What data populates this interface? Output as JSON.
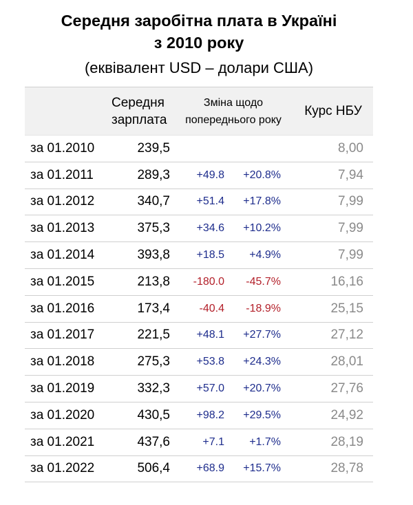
{
  "title_line1": "Середня заробітна плата в Україні",
  "title_line2": "з 2010 року",
  "subtitle": "(еквівалент USD – долари США)",
  "headers": {
    "salary_line1": "Середня",
    "salary_line2": "зарплата",
    "change_line1": "Зміна щодо",
    "change_line2": "попереднього року",
    "rate": "Курс НБУ"
  },
  "colors": {
    "positive": "#1d2c8c",
    "negative": "#b3202a",
    "rate_text": "#8a8a8a",
    "header_bg": "#f1f1f1"
  },
  "rows": [
    {
      "date": "за 01.2010",
      "salary": "239,5",
      "abs": "",
      "pct": "",
      "sign": "",
      "rate": "8,00"
    },
    {
      "date": "за 01.2011",
      "salary": "289,3",
      "abs": "+49.8",
      "pct": "+20.8%",
      "sign": "pos",
      "rate": "7,94"
    },
    {
      "date": "за 01.2012",
      "salary": "340,7",
      "abs": "+51.4",
      "pct": "+17.8%",
      "sign": "pos",
      "rate": "7,99"
    },
    {
      "date": "за 01.2013",
      "salary": "375,3",
      "abs": "+34.6",
      "pct": "+10.2%",
      "sign": "pos",
      "rate": "7,99"
    },
    {
      "date": "за 01.2014",
      "salary": "393,8",
      "abs": "+18.5",
      "pct": "+4.9%",
      "sign": "pos",
      "rate": "7,99"
    },
    {
      "date": "за 01.2015",
      "salary": "213,8",
      "abs": "-180.0",
      "pct": "-45.7%",
      "sign": "neg",
      "rate": "16,16"
    },
    {
      "date": "за 01.2016",
      "salary": "173,4",
      "abs": "-40.4",
      "pct": "-18.9%",
      "sign": "neg",
      "rate": "25,15"
    },
    {
      "date": "за 01.2017",
      "salary": "221,5",
      "abs": "+48.1",
      "pct": "+27.7%",
      "sign": "pos",
      "rate": "27,12"
    },
    {
      "date": "за 01.2018",
      "salary": "275,3",
      "abs": "+53.8",
      "pct": "+24.3%",
      "sign": "pos",
      "rate": "28,01"
    },
    {
      "date": "за 01.2019",
      "salary": "332,3",
      "abs": "+57.0",
      "pct": "+20.7%",
      "sign": "pos",
      "rate": "27,76"
    },
    {
      "date": "за 01.2020",
      "salary": "430,5",
      "abs": "+98.2",
      "pct": "+29.5%",
      "sign": "pos",
      "rate": "24,92"
    },
    {
      "date": "за 01.2021",
      "salary": "437,6",
      "abs": "+7.1",
      "pct": "+1.7%",
      "sign": "pos",
      "rate": "28,19"
    },
    {
      "date": "за 01.2022",
      "salary": "506,4",
      "abs": "+68.9",
      "pct": "+15.7%",
      "sign": "pos",
      "rate": "28,78"
    }
  ]
}
